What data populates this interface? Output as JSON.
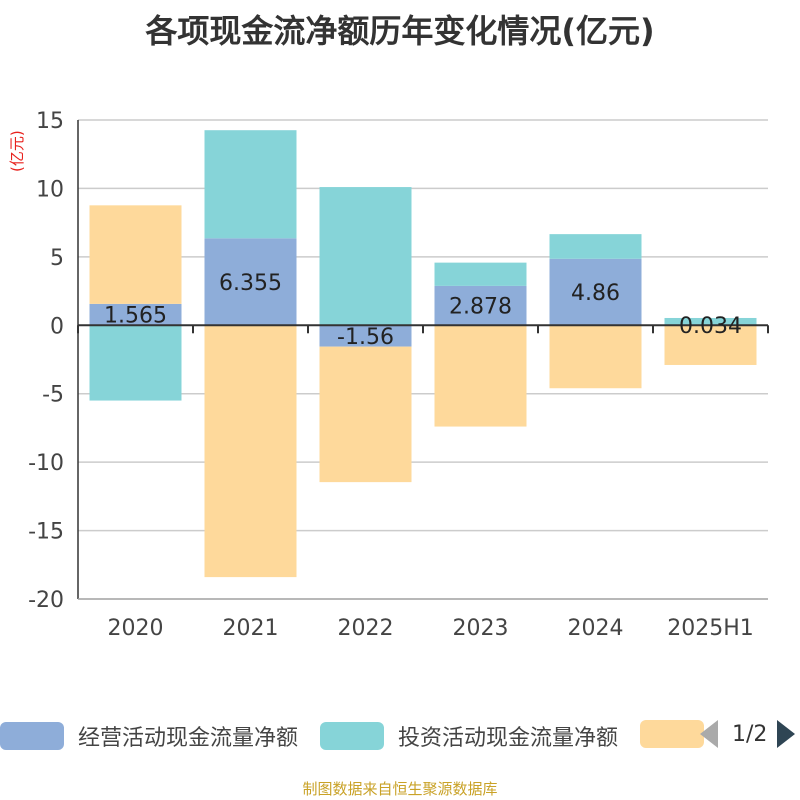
{
  "chart_data": {
    "type": "bar",
    "stacked": true,
    "title": "各项现金流净额历年变化情况(亿元)",
    "unit_label": "(亿元)",
    "categories": [
      "2020",
      "2021",
      "2022",
      "2023",
      "2024",
      "2025H1"
    ],
    "ylim": [
      -20,
      15
    ],
    "yticks": [
      15,
      10,
      5,
      0,
      -5,
      -10,
      -15,
      -20
    ],
    "grid": true,
    "series": [
      {
        "name": "经营活动现金流量净额",
        "color": "#8eadd9",
        "values": [
          1.565,
          6.355,
          -1.56,
          2.878,
          4.86,
          0.034
        ],
        "labels": [
          "1.565",
          "6.355",
          "-1.56",
          "2.878",
          "4.86",
          "0.034"
        ]
      },
      {
        "name": "投资活动现金流量净额",
        "color": "#86d4d8",
        "values": [
          -5.5,
          7.9,
          10.1,
          1.7,
          1.8,
          0.5
        ]
      },
      {
        "name": "",
        "color": "#fed99b",
        "values": [
          7.2,
          -18.4,
          -9.9,
          -7.4,
          -4.6,
          -2.9
        ]
      }
    ],
    "legend_position": "bottom"
  },
  "pager": {
    "text": "1/2"
  },
  "source": "制图数据来自恒生聚源数据库"
}
